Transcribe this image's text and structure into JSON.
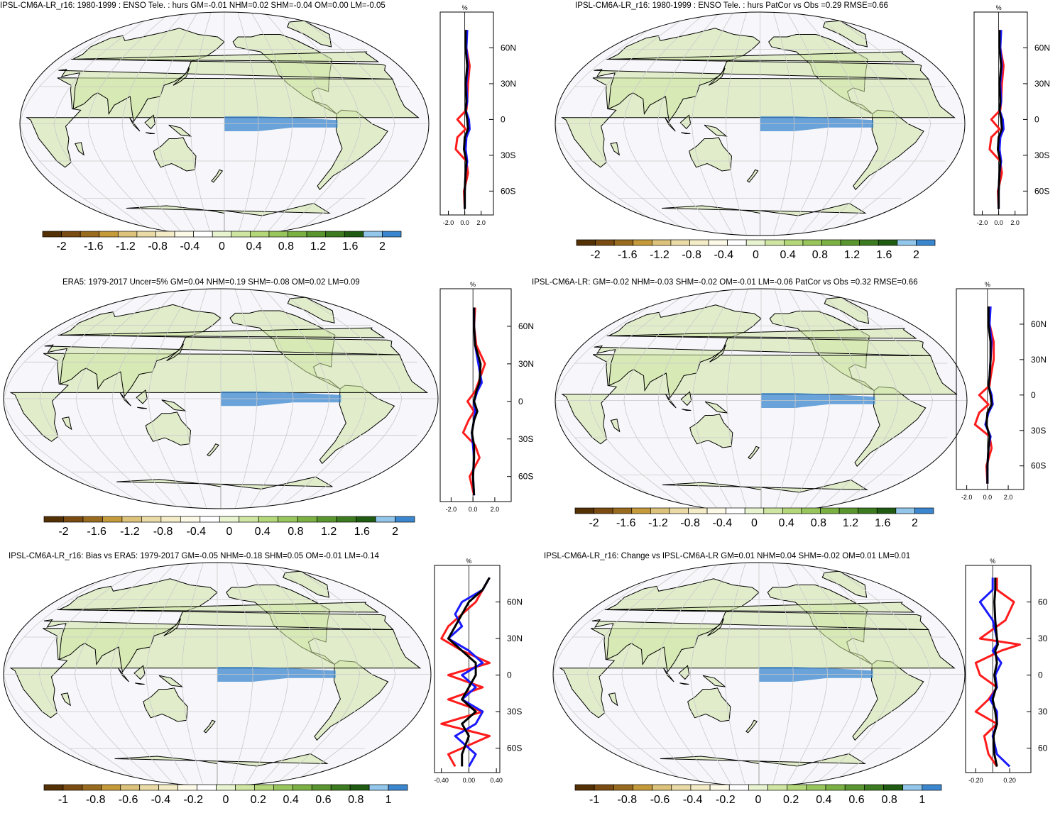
{
  "colors": {
    "cbar": [
      "#543005",
      "#7a4c12",
      "#996b1f",
      "#c59a3b",
      "#dcc27a",
      "#eadba6",
      "#f4ecc6",
      "#fcfae6",
      "#ffffff",
      "#e8f3d0",
      "#cfe6a2",
      "#b4d879",
      "#98c65d",
      "#7bb143",
      "#5a962f",
      "#3d7b20",
      "#205b12",
      "#92c6ea",
      "#3b87cf"
    ],
    "ocean": "#f7f7fb",
    "land_outline": "#000000",
    "red_line": "#ff1c1c",
    "blue_line": "#1a1aff",
    "black_line": "#000000"
  },
  "panels": [
    {
      "title": "IPSL-CM6A-LR_r16: 1980-1999 : ENSO Tele. : hurs GM=-0.01 NHM=0.02 SHM=-0.04 OM=0.00 LM=-0.05",
      "unit": "%",
      "lat_labels": [
        "60N",
        "30N",
        "0",
        "30S",
        "60S"
      ],
      "x_ticks": [
        "-2.0",
        "0.0",
        "2.0"
      ],
      "cbar_labels": [
        "-2",
        "-1.6",
        "-1.2",
        "-0.8",
        "-0.4",
        "0",
        "0.4",
        "0.8",
        "1.2",
        "1.6",
        "2"
      ]
    },
    {
      "title": "IPSL-CM6A-LR_r16: 1980-1999 : ENSO Tele. : hurs PatCor vs Obs =0.29 RMSE=0.66",
      "unit": "%",
      "lat_labels": [
        "60N",
        "30N",
        "0",
        "30S",
        "60S"
      ],
      "x_ticks": [
        "-2.0",
        "0.0",
        "2.0"
      ],
      "cbar_labels": [
        "-2",
        "-1.6",
        "-1.2",
        "-0.8",
        "-0.4",
        "0",
        "0.4",
        "0.8",
        "1.2",
        "1.6",
        "2"
      ]
    },
    {
      "title": "ERA5: 1979-2017 Uncer=5% GM=0.04 NHM=0.19 SHM=-0.08 OM=0.02 LM=0.09",
      "unit": "%",
      "lat_labels": [
        "60N",
        "30N",
        "0",
        "30S",
        "60S"
      ],
      "x_ticks": [
        "-2.0",
        "0.0",
        "2.0"
      ],
      "cbar_labels": [
        "-2",
        "-1.6",
        "-1.2",
        "-0.8",
        "-0.4",
        "0",
        "0.4",
        "0.8",
        "1.2",
        "1.6",
        "2"
      ]
    },
    {
      "title": "IPSL-CM6A-LR: GM=-0.02 NHM=-0.03 SHM=-0.02 OM=-0.01 LM=-0.06 PatCor vs Obs =0.32 RMSE=0.66",
      "unit": "%",
      "lat_labels": [
        "60N",
        "30N",
        "0",
        "30S",
        "60S"
      ],
      "x_ticks": [
        "-2.0",
        "0.0",
        "2.0"
      ],
      "cbar_labels": [
        "-2",
        "-1.6",
        "-1.2",
        "-0.8",
        "-0.4",
        "0",
        "0.4",
        "0.8",
        "1.2",
        "1.6",
        "2"
      ]
    },
    {
      "title": "IPSL-CM6A-LR_r16: Bias vs ERA5: 1979-2017 GM=-0.05 NHM=-0.18 SHM=0.05 OM=-0.01 LM=-0.14",
      "unit": "%",
      "lat_labels": [
        "60N",
        "30N",
        "0",
        "30S",
        "60S"
      ],
      "x_ticks": [
        "-0.40",
        "0.00",
        "0.40"
      ],
      "cbar_labels": [
        "-1",
        "-0.8",
        "-0.6",
        "-0.4",
        "-0.2",
        "0",
        "0.2",
        "0.4",
        "0.6",
        "0.8",
        "1"
      ]
    },
    {
      "title": "IPSL-CM6A-LR_r16: Change vs IPSL-CM6A-LR GM=0.01 NHM=0.04 SHM=-0.02 OM=0.01 LM=0.01",
      "unit": "%",
      "lat_labels": [
        "60",
        "30",
        "0",
        "30",
        "60"
      ],
      "x_ticks": [
        "-0.20",
        "0.20"
      ],
      "cbar_labels": [
        "-1",
        "-0.8",
        "-0.6",
        "-0.4",
        "-0.2",
        "0",
        "0.2",
        "0.4",
        "0.6",
        "0.8",
        "1"
      ]
    }
  ],
  "chart_data": [
    {
      "type": "line",
      "title": "IPSL-CM6A-LR_r16: 1980-1999 : ENSO Tele. : hurs GM=-0.01 NHM=0.02 SHM=-0.04 OM=0.00 LM=-0.05",
      "xlim": [
        -3,
        3.5
      ],
      "ylim": [
        -80,
        90
      ],
      "y": [
        -75,
        -60,
        -45,
        -35,
        -25,
        -15,
        -8,
        0,
        8,
        15,
        30,
        45,
        60,
        75
      ],
      "series": [
        {
          "color": "#ff1c1c",
          "values": [
            0,
            -0.1,
            0.4,
            0.2,
            -1.1,
            -0.9,
            0.1,
            -0.9,
            0.2,
            0.3,
            0.4,
            0.6,
            0.2,
            0.1
          ]
        },
        {
          "color": "#1a1aff",
          "values": [
            0,
            0,
            0.1,
            0.3,
            0.1,
            0.2,
            0.6,
            0.5,
            0.1,
            0.3,
            0.2,
            0.4,
            0.2,
            0.3
          ]
        },
        {
          "color": "#000000",
          "values": [
            0,
            0,
            0.1,
            0.2,
            -0.1,
            0,
            0.4,
            0.3,
            0.1,
            0.2,
            0.1,
            0.3,
            0.1,
            0.1
          ]
        }
      ]
    },
    {
      "type": "line",
      "title": "IPSL-CM6A-LR_r16: 1980-1999 : ENSO Tele. : hurs PatCor vs Obs =0.29 RMSE=0.66",
      "xlim": [
        -3,
        3.5
      ],
      "ylim": [
        -80,
        90
      ],
      "y": [
        -75,
        -60,
        -45,
        -35,
        -25,
        -15,
        -8,
        0,
        8,
        15,
        30,
        45,
        60,
        75
      ],
      "series": [
        {
          "color": "#ff1c1c",
          "values": [
            0,
            -0.1,
            0.4,
            0.2,
            -1.1,
            -0.9,
            0.1,
            -0.9,
            0.2,
            0.3,
            0.4,
            0.6,
            0.2,
            0.1
          ]
        },
        {
          "color": "#1a1aff",
          "values": [
            0,
            0,
            0.1,
            0.3,
            0.1,
            0.2,
            0.6,
            0.5,
            0.1,
            0.3,
            0.2,
            0.4,
            0.2,
            0.3
          ]
        },
        {
          "color": "#000000",
          "values": [
            0,
            0,
            0.1,
            0.2,
            -0.1,
            0,
            0.4,
            0.3,
            0.1,
            0.2,
            0.1,
            0.3,
            0.1,
            0.1
          ]
        }
      ]
    },
    {
      "type": "line",
      "title": "ERA5: 1979-2017 Uncer=5% GM=0.04 NHM=0.19 SHM=-0.08 OM=0.02 LM=0.09",
      "xlim": [
        -3,
        3.5
      ],
      "ylim": [
        -80,
        90
      ],
      "y": [
        -75,
        -60,
        -45,
        -35,
        -25,
        -15,
        -8,
        0,
        8,
        15,
        30,
        45,
        60,
        75
      ],
      "series": [
        {
          "color": "#ff1c1c",
          "values": [
            0.1,
            -0.3,
            0.6,
            0.2,
            -0.9,
            -0.4,
            0.1,
            -0.5,
            0.2,
            0.5,
            1.1,
            0.3,
            0.1,
            0.2
          ]
        },
        {
          "color": "#1a1aff",
          "values": [
            0.1,
            0,
            0.1,
            0,
            -0.1,
            0.1,
            0.2,
            0.1,
            0.4,
            0.8,
            0.5,
            0.2,
            0.1,
            0.1
          ]
        },
        {
          "color": "#000000",
          "values": [
            0.1,
            0,
            0.1,
            0.1,
            -0.1,
            0.1,
            0.4,
            0.1,
            0.3,
            0.6,
            0.7,
            0.2,
            0.1,
            0.1
          ]
        }
      ]
    },
    {
      "type": "line",
      "title": "IPSL-CM6A-LR: GM=-0.02 NHM=-0.03 SHM=-0.02 OM=-0.01 LM=-0.06 PatCor vs Obs =0.32 RMSE=0.66",
      "xlim": [
        -3,
        3.5
      ],
      "ylim": [
        -80,
        90
      ],
      "y": [
        -75,
        -60,
        -45,
        -35,
        -25,
        -15,
        -8,
        0,
        8,
        15,
        30,
        45,
        60,
        75
      ],
      "series": [
        {
          "color": "#ff1c1c",
          "values": [
            0,
            -0.1,
            0.4,
            0.2,
            -1.2,
            -0.8,
            0.1,
            -0.8,
            0.2,
            0.3,
            0.6,
            0.6,
            0.2,
            0.1
          ]
        },
        {
          "color": "#1a1aff",
          "values": [
            0,
            0,
            0.1,
            0.3,
            -0.2,
            0.1,
            0.5,
            0.4,
            0.1,
            0.2,
            0.3,
            0.4,
            0.2,
            0.3
          ]
        },
        {
          "color": "#000000",
          "values": [
            0,
            0,
            0.1,
            0.2,
            -0.1,
            0,
            0.4,
            0.3,
            0.1,
            0.2,
            0.3,
            0.3,
            0.1,
            0.1
          ]
        }
      ]
    },
    {
      "type": "line",
      "title": "IPSL-CM6A-LR_r16: Bias vs ERA5: 1979-2017 GM=-0.05 NHM=-0.18 SHM=0.05 OM=-0.01 LM=-0.14",
      "xlim": [
        -0.5,
        0.45
      ],
      "ylim": [
        -80,
        90
      ],
      "y": [
        -75,
        -65,
        -50,
        -40,
        -30,
        -20,
        -10,
        0,
        10,
        20,
        30,
        40,
        50,
        60,
        70,
        80
      ],
      "series": [
        {
          "color": "#ff1c1c",
          "values": [
            -0.2,
            -0.3,
            0.3,
            -0.4,
            0.2,
            -0.3,
            0.2,
            -0.3,
            0.3,
            -0.1,
            -0.4,
            -0.3,
            -0.1,
            0.1,
            0.2,
            0.3
          ]
        },
        {
          "color": "#1a1aff",
          "values": [
            0,
            0.1,
            -0.2,
            0.1,
            0.2,
            -0.1,
            0.1,
            -0.1,
            0.2,
            0,
            -0.3,
            -0.1,
            -0.2,
            -0.1,
            0.2,
            0.3
          ]
        },
        {
          "color": "#000000",
          "values": [
            -0.1,
            -0.1,
            0,
            -0.1,
            0.1,
            -0.1,
            0,
            0.1,
            0.1,
            -0.1,
            -0.3,
            -0.2,
            -0.1,
            0,
            0.2,
            0.3
          ]
        }
      ]
    },
    {
      "type": "line",
      "title": "IPSL-CM6A-LR_r16: Change vs IPSL-CM6A-LR GM=0.01 NHM=0.04 SHM=-0.02 OM=0.01 LM=0.01",
      "xlim": [
        -0.32,
        0.45
      ],
      "ylim": [
        -80,
        90
      ],
      "y": [
        -75,
        -65,
        -50,
        -40,
        -30,
        -20,
        -10,
        0,
        10,
        20,
        25,
        30,
        45,
        60,
        70,
        80
      ],
      "series": [
        {
          "color": "#ff1c1c",
          "values": [
            0.05,
            -0.05,
            -0.1,
            0.05,
            -0.2,
            -0.05,
            0.05,
            -0.15,
            -0.2,
            0.1,
            0.32,
            -0.15,
            0.15,
            0.25,
            0.05,
            0.05
          ]
        },
        {
          "color": "#1a1aff",
          "values": [
            0.2,
            0.05,
            0,
            0.05,
            0.05,
            -0.03,
            0.05,
            0.03,
            0.1,
            0,
            0.05,
            0.05,
            0,
            -0.15,
            0,
            0
          ]
        },
        {
          "color": "#000000",
          "values": [
            0.05,
            0.02,
            0.01,
            0.05,
            0.03,
            0,
            0.04,
            0.02,
            0.05,
            0.03,
            0.06,
            0.05,
            0.03,
            0.02,
            0.03,
            0.03
          ]
        }
      ]
    }
  ]
}
